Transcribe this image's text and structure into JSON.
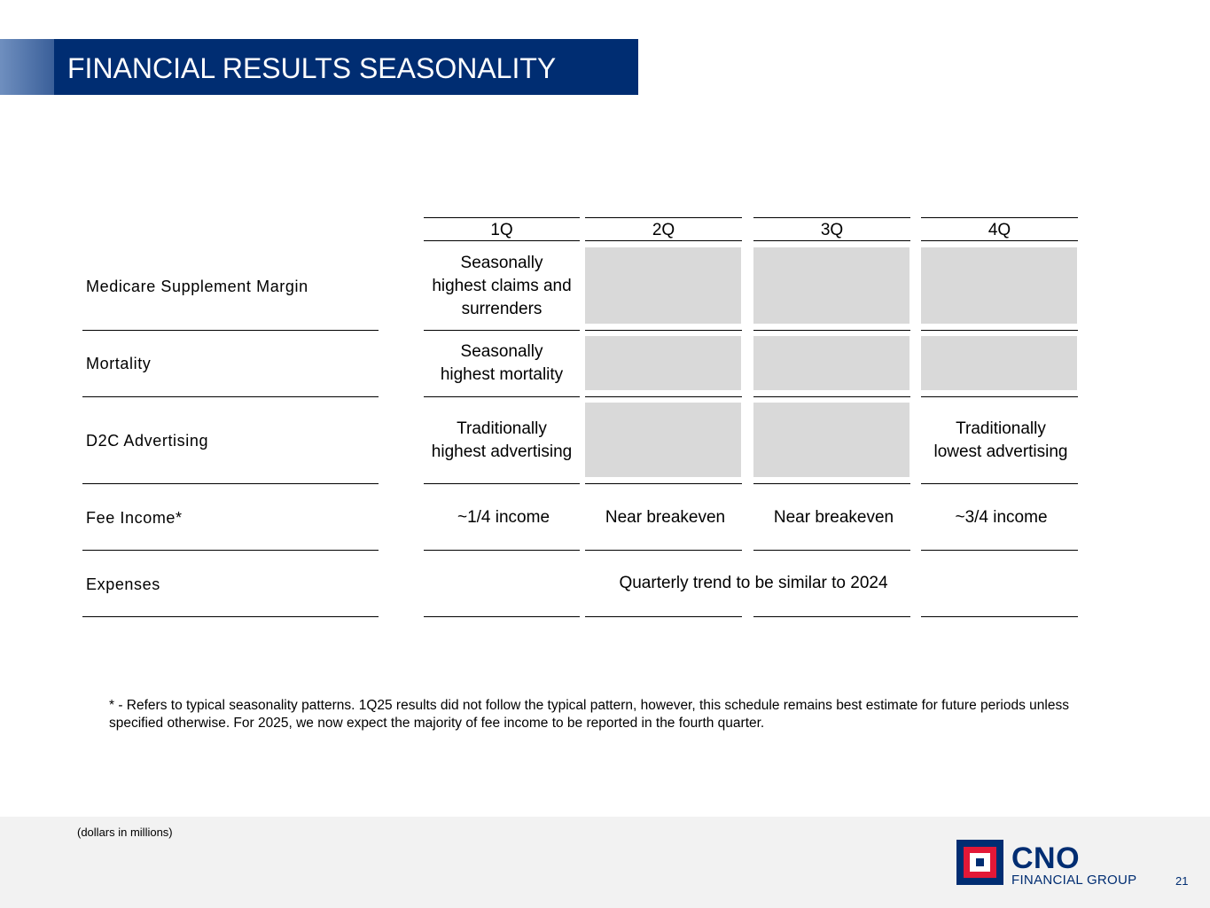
{
  "header": {
    "title": "FINANCIAL RESULTS SEASONALITY"
  },
  "table": {
    "quarters": [
      "1Q",
      "2Q",
      "3Q",
      "4Q"
    ],
    "rows": [
      {
        "label": "Medicare Supplement Margin",
        "cells": [
          "Seasonally\nhighest claims and\nsurrenders",
          "",
          "",
          ""
        ]
      },
      {
        "label": "Mortality",
        "cells": [
          "Seasonally\nhighest mortality",
          "",
          "",
          ""
        ]
      },
      {
        "label": "D2C Advertising",
        "cells": [
          "Traditionally\nhighest advertising",
          "",
          "",
          "Traditionally\nlowest advertising"
        ]
      },
      {
        "label": "Fee Income*",
        "cells": [
          "~1/4 income",
          "Near breakeven",
          "Near breakeven",
          "~3/4 income"
        ]
      },
      {
        "label": "Expenses",
        "span_text": "Quarterly trend to be similar to 2024"
      }
    ]
  },
  "footnote": "* - Refers to typical seasonality patterns.  1Q25 results did not follow the typical pattern, however, this schedule remains best estimate for future periods unless specified otherwise.  For 2025, we now expect the majority of fee income to be reported in the fourth quarter.",
  "footer": {
    "units_note": "(dollars in millions)",
    "logo_name": "CNO",
    "logo_sub": "FINANCIAL GROUP",
    "page_number": "21"
  },
  "colors": {
    "brand_navy": "#002d72",
    "shade_gray": "#d9d9d9",
    "footer_bg": "#f2f2f2"
  }
}
